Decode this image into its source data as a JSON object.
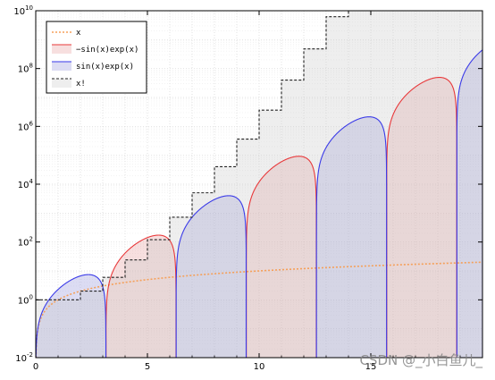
{
  "chart_data": {
    "type": "area",
    "xlim": [
      0,
      20
    ],
    "ylim_exp": [
      -2,
      10
    ],
    "y_scale": "log",
    "grid": true,
    "legend_position": "top-left",
    "x_ticks": [
      0,
      5,
      10,
      15
    ],
    "x_tick_labels": [
      "0",
      "5",
      "10",
      "15"
    ],
    "y_ticks_exp": [
      -2,
      0,
      2,
      4,
      6,
      8,
      10
    ],
    "y_tick_labels": [
      {
        "base": "10",
        "exp": "-2"
      },
      {
        "base": "10",
        "exp": "0"
      },
      {
        "base": "10",
        "exp": "2"
      },
      {
        "base": "10",
        "exp": "4"
      },
      {
        "base": "10",
        "exp": "6"
      },
      {
        "base": "10",
        "exp": "8"
      },
      {
        "base": "10",
        "exp": "10"
      }
    ],
    "series": [
      {
        "name": "x",
        "formula": "x",
        "color": "#f5a05a",
        "style": "dotted"
      },
      {
        "name": "−sin(x)exp(x)",
        "formula": "-sin(x)*exp(x)",
        "color": "#e8383a",
        "fill": "rgba(230,150,150,0.30)",
        "style": "solid"
      },
      {
        "name": " sin(x)exp(x)",
        "formula": "sin(x)*exp(x)",
        "color": "#3a3ae8",
        "fill": "rgba(140,140,215,0.30)",
        "style": "solid"
      },
      {
        "name": "x!",
        "formula": "factorial(floor(x))",
        "color": "#222222",
        "fill": "rgba(200,200,200,0.30)",
        "style": "dashed"
      }
    ]
  },
  "watermark": "CSDN @_小白鱼儿_"
}
